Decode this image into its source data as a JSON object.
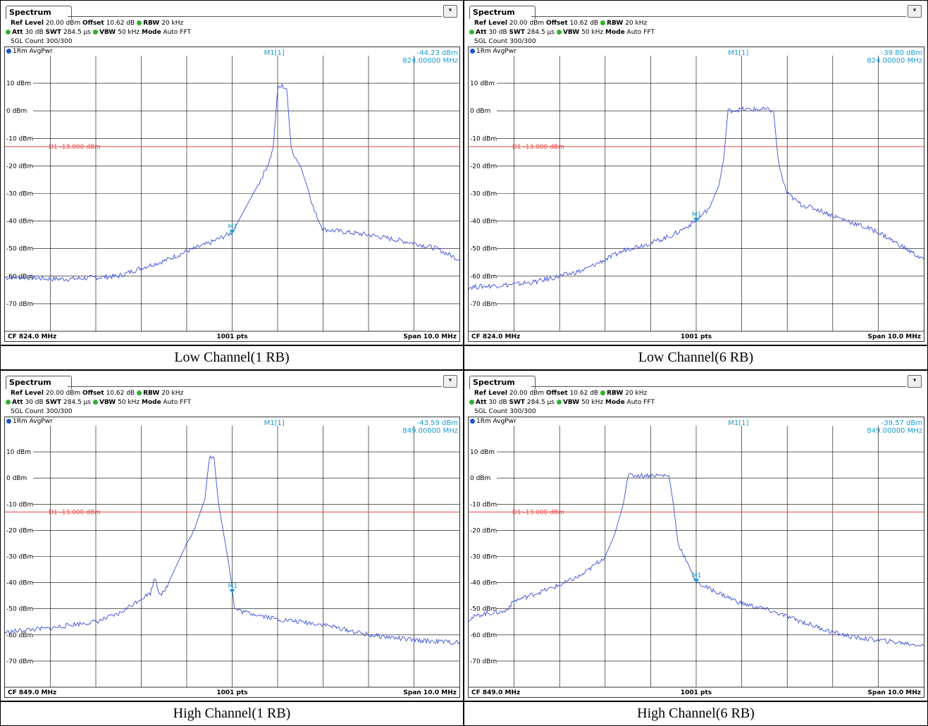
{
  "colors": {
    "trace": "#3a4fd8",
    "limit": "#e64646",
    "marker": "#1a9bd0",
    "grid": "#000000"
  },
  "panels": [
    {
      "tab": "Spectrum",
      "ref_level_label": "Ref Level",
      "ref_level": "20.00 dBm",
      "offset_label": "Offset",
      "offset": "10.62 dB",
      "rbw_label": "RBW",
      "rbw": "20 kHz",
      "att_label": "Att",
      "att": "30 dB",
      "swt_label": "SWT",
      "swt": "284.5 µs",
      "vbw_label": "VBW",
      "vbw": "50 kHz",
      "mode_label": "Mode",
      "mode": "Auto FFT",
      "sgl": "SGL Count 300/300",
      "trace": "1Rm AvgPwr",
      "marker_label": "M1[1]",
      "marker_value": "-44.23 dBm",
      "marker_freq": "824.00000 MHz",
      "marker_tag": "M1",
      "limit_label": "D1 -13.000 dBm",
      "cf": "CF 824.0 MHz",
      "pts": "1001 pts",
      "span": "Span 10.0 MHz",
      "caption": "Low Channel(1 RB)",
      "chart_data": {
        "type": "line",
        "x_range_mhz": [
          819.0,
          829.0
        ],
        "ylim": [
          -80,
          20
        ],
        "yticks": [
          "10 dBm",
          "0 dBm",
          "-10 dBm",
          "-20 dBm",
          "-30 dBm",
          "-40 dBm",
          "-50 dBm",
          "-60 dBm",
          "-70 dBm"
        ],
        "limit_line_dbm": -13,
        "marker": {
          "x": 824.0,
          "y": -44.23
        },
        "series": [
          {
            "x": [
              819.0,
              819.5,
              820.0,
              820.5,
              821.0,
              821.5,
              822.0,
              822.5,
              823.0,
              823.5,
              824.0,
              824.3,
              824.6,
              824.8,
              824.9,
              825.0,
              825.1,
              825.2,
              825.3,
              825.5,
              825.7,
              825.8,
              826.0,
              826.5,
              827.0,
              827.5,
              828.0,
              828.5,
              829.0
            ],
            "y": [
              -60.5,
              -60.5,
              -61,
              -61,
              -60.5,
              -60,
              -57,
              -54.5,
              -51,
              -48,
              -44.2,
              -35,
              -26,
              -19,
              -14,
              8,
              9,
              8,
              -14,
              -20,
              -30,
              -36,
              -43,
              -44,
              -45,
              -46.5,
              -48,
              -50,
              -54
            ]
          }
        ]
      }
    },
    {
      "tab": "Spectrum",
      "ref_level_label": "Ref Level",
      "ref_level": "20.00 dBm",
      "offset_label": "Offset",
      "offset": "10.62 dB",
      "rbw_label": "RBW",
      "rbw": "20 kHz",
      "att_label": "Att",
      "att": "30 dB",
      "swt_label": "SWT",
      "swt": "284.5 µs",
      "vbw_label": "VBW",
      "vbw": "50 kHz",
      "mode_label": "Mode",
      "mode": "Auto FFT",
      "sgl": "SGL Count 300/300",
      "trace": "1Rm AvgPwr",
      "marker_label": "M1[1]",
      "marker_value": "-39.80 dBm",
      "marker_freq": "824.00000 MHz",
      "marker_tag": "M1",
      "limit_label": "D1 -13.000 dBm",
      "cf": "CF 824.0 MHz",
      "pts": "1001 pts",
      "span": "Span 10.0 MHz",
      "caption": "Low Channel(6 RB)",
      "chart_data": {
        "type": "line",
        "x_range_mhz": [
          819.0,
          829.0
        ],
        "ylim": [
          -80,
          20
        ],
        "yticks": [
          "10 dBm",
          "0 dBm",
          "-10 dBm",
          "-20 dBm",
          "-30 dBm",
          "-40 dBm",
          "-50 dBm",
          "-60 dBm",
          "-70 dBm"
        ],
        "limit_line_dbm": -13,
        "marker": {
          "x": 824.0,
          "y": -39.8
        },
        "series": [
          {
            "x": [
              819.0,
              819.5,
              820.0,
              820.5,
              821.0,
              821.5,
              822.0,
              822.5,
              823.0,
              823.5,
              824.0,
              824.3,
              824.5,
              824.6,
              824.7,
              825.0,
              825.5,
              825.7,
              825.8,
              825.9,
              826.0,
              826.3,
              826.7,
              827.0,
              827.5,
              828.0,
              828.5,
              829.0
            ],
            "y": [
              -64,
              -63.5,
              -63,
              -62,
              -60,
              -58,
              -54,
              -50,
              -48,
              -45,
              -40,
              -35,
              -27,
              -18,
              0,
              0.5,
              0.5,
              0,
              -18,
              -25,
              -30,
              -34,
              -36,
              -38,
              -41,
              -44,
              -49,
              -54
            ]
          }
        ]
      }
    },
    {
      "tab": "Spectrum",
      "ref_level_label": "Ref Level",
      "ref_level": "20.00 dBm",
      "offset_label": "Offset",
      "offset": "10.62 dB",
      "rbw_label": "RBW",
      "rbw": "20 kHz",
      "att_label": "Att",
      "att": "30 dB",
      "swt_label": "SWT",
      "swt": "284.5 µs",
      "vbw_label": "VBW",
      "vbw": "50 kHz",
      "mode_label": "Mode",
      "mode": "Auto FFT",
      "sgl": "SGL Count 300/300",
      "trace": "1Rm AvgPwr",
      "marker_label": "M1[1]",
      "marker_value": "-43.59 dBm",
      "marker_freq": "849.00000 MHz",
      "marker_tag": "M1",
      "limit_label": "D1 -13.000 dBm",
      "cf": "CF 849.0 MHz",
      "pts": "1001 pts",
      "span": "Span 10.0 MHz",
      "caption": "High Channel(1 RB)",
      "chart_data": {
        "type": "line",
        "x_range_mhz": [
          844.0,
          854.0
        ],
        "ylim": [
          -80,
          20
        ],
        "yticks": [
          "10 dBm",
          "0 dBm",
          "-10 dBm",
          "-20 dBm",
          "-30 dBm",
          "-40 dBm",
          "-50 dBm",
          "-60 dBm",
          "-70 dBm"
        ],
        "limit_line_dbm": -13,
        "marker": {
          "x": 849.0,
          "y": -43.59
        },
        "series": [
          {
            "x": [
              844.0,
              844.5,
              845.0,
              845.5,
              846.0,
              846.5,
              847.0,
              847.2,
              847.3,
              847.4,
              847.5,
              847.6,
              848.0,
              848.2,
              848.4,
              848.5,
              848.6,
              848.7,
              848.9,
              849.0,
              849.05,
              849.2,
              849.5,
              850.0,
              851.0,
              852.0,
              853.0,
              854.0
            ],
            "y": [
              -59,
              -58,
              -57.5,
              -56,
              -55,
              -52,
              -46,
              -44,
              -38,
              -44,
              -44,
              -40,
              -25,
              -18,
              -8,
              8,
              8,
              -10,
              -30,
              -42,
              -50,
              -51,
              -52,
              -54,
              -56,
              -60,
              -62,
              -63
            ]
          }
        ]
      }
    },
    {
      "tab": "Spectrum",
      "ref_level_label": "Ref Level",
      "ref_level": "20.00 dBm",
      "offset_label": "Offset",
      "offset": "10.62 dB",
      "rbw_label": "RBW",
      "rbw": "20 kHz",
      "att_label": "Att",
      "att": "30 dB",
      "swt_label": "SWT",
      "swt": "284.5 µs",
      "vbw_label": "VBW",
      "vbw": "50 kHz",
      "mode_label": "Mode",
      "mode": "Auto FFT",
      "sgl": "SGL Count 300/300",
      "trace": "1Rm AvgPwr",
      "marker_label": "M1[1]",
      "marker_value": "-39.57 dBm",
      "marker_freq": "849.00000 MHz",
      "marker_tag": "M1",
      "limit_label": "D1 -13.000 dBm",
      "cf": "CF 849.0 MHz",
      "pts": "1001 pts",
      "span": "Span 10.0 MHz",
      "caption": "High Channel(6 RB)",
      "chart_data": {
        "type": "line",
        "x_range_mhz": [
          844.0,
          854.0
        ],
        "ylim": [
          -80,
          20
        ],
        "yticks": [
          "10 dBm",
          "0 dBm",
          "-10 dBm",
          "-20 dBm",
          "-30 dBm",
          "-40 dBm",
          "-50 dBm",
          "-60 dBm",
          "-70 dBm"
        ],
        "limit_line_dbm": -13,
        "marker": {
          "x": 849.0,
          "y": -39.57
        },
        "series": [
          {
            "x": [
              844.0,
              844.3,
              844.8,
              845.0,
              845.5,
              846.0,
              846.5,
              847.0,
              847.2,
              847.4,
              847.5,
              848.0,
              848.4,
              848.5,
              848.6,
              848.8,
              849.0,
              849.5,
              850.0,
              850.5,
              851.0,
              851.5,
              852.0,
              852.5,
              853.0,
              853.5,
              854.0
            ],
            "y": [
              -54,
              -52,
              -51,
              -47,
              -44,
              -41,
              -37,
              -30,
              -22,
              -10,
              1,
              1,
              1,
              -10,
              -25,
              -32,
              -40,
              -44,
              -48,
              -50,
              -53,
              -56,
              -59,
              -61,
              -62,
              -63,
              -64
            ]
          }
        ]
      }
    }
  ]
}
